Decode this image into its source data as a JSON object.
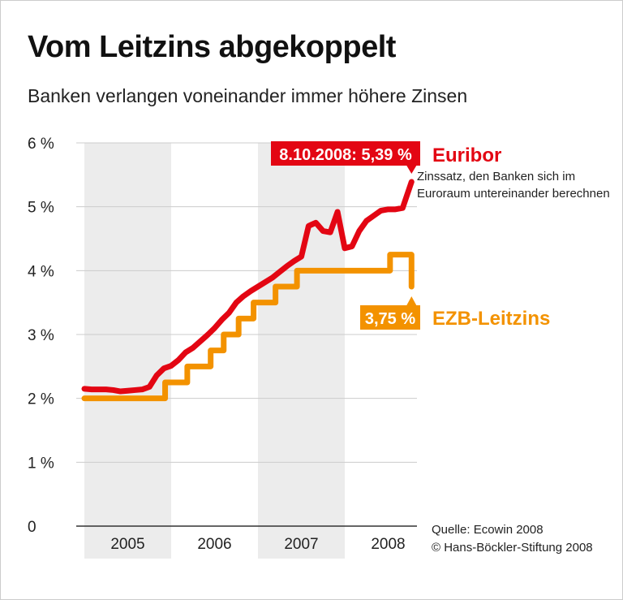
{
  "title": "Vom Leitzins abgekoppelt",
  "subtitle": "Banken verlangen voneinander immer höhere Zinsen",
  "source": "Quelle: Ecowin 2008",
  "copyright": "© Hans-Böckler-Stiftung 2008",
  "chart_data": {
    "type": "line",
    "ylim": [
      0,
      6
    ],
    "yticks": [
      "0",
      "1 %",
      "2 %",
      "3 %",
      "4 %",
      "5 %",
      "6 %"
    ],
    "xticks": [
      "2005",
      "2006",
      "2007",
      "2008"
    ],
    "shaded_years": [
      "2005",
      "2007"
    ],
    "grid": true,
    "series": [
      {
        "name": "Euribor",
        "description": "Zinssatz, den Banken sich im Euroraum untereinander berechnen",
        "color": "#e30613",
        "step": false,
        "points": [
          [
            "2005-01",
            2.15
          ],
          [
            "2005-02",
            2.14
          ],
          [
            "2005-03",
            2.14
          ],
          [
            "2005-04",
            2.14
          ],
          [
            "2005-05",
            2.13
          ],
          [
            "2005-06",
            2.11
          ],
          [
            "2005-07",
            2.12
          ],
          [
            "2005-08",
            2.13
          ],
          [
            "2005-09",
            2.14
          ],
          [
            "2005-10",
            2.18
          ],
          [
            "2005-11",
            2.36
          ],
          [
            "2005-12",
            2.47
          ],
          [
            "2006-01",
            2.51
          ],
          [
            "2006-02",
            2.6
          ],
          [
            "2006-03",
            2.72
          ],
          [
            "2006-04",
            2.79
          ],
          [
            "2006-05",
            2.89
          ],
          [
            "2006-06",
            2.99
          ],
          [
            "2006-07",
            3.1
          ],
          [
            "2006-08",
            3.23
          ],
          [
            "2006-09",
            3.34
          ],
          [
            "2006-10",
            3.5
          ],
          [
            "2006-11",
            3.6
          ],
          [
            "2006-12",
            3.68
          ],
          [
            "2007-01",
            3.75
          ],
          [
            "2007-02",
            3.82
          ],
          [
            "2007-03",
            3.89
          ],
          [
            "2007-04",
            3.98
          ],
          [
            "2007-05",
            4.07
          ],
          [
            "2007-06",
            4.15
          ],
          [
            "2007-07",
            4.22
          ],
          [
            "2007-08",
            4.7
          ],
          [
            "2007-09",
            4.75
          ],
          [
            "2007-10",
            4.62
          ],
          [
            "2007-11",
            4.6
          ],
          [
            "2007-12",
            4.92
          ],
          [
            "2008-01",
            4.35
          ],
          [
            "2008-02",
            4.38
          ],
          [
            "2008-03",
            4.62
          ],
          [
            "2008-04",
            4.78
          ],
          [
            "2008-05",
            4.86
          ],
          [
            "2008-06",
            4.94
          ],
          [
            "2008-07",
            4.96
          ],
          [
            "2008-08",
            4.96
          ],
          [
            "2008-09",
            4.98
          ],
          [
            "2008-10-08",
            5.39
          ]
        ],
        "label": "8.10.2008: 5,39 %"
      },
      {
        "name": "EZB-Leitzins",
        "color": "#f39200",
        "step": true,
        "points": [
          [
            "2005-01",
            2.0
          ],
          [
            "2005-12-06",
            2.25
          ],
          [
            "2006-03-08",
            2.5
          ],
          [
            "2006-06-15",
            2.75
          ],
          [
            "2006-08-09",
            3.0
          ],
          [
            "2006-10-11",
            3.25
          ],
          [
            "2006-12-13",
            3.5
          ],
          [
            "2007-03-14",
            3.75
          ],
          [
            "2007-06-13",
            4.0
          ],
          [
            "2008-07-09",
            4.25
          ],
          [
            "2008-10-08",
            3.75
          ]
        ],
        "label": "3,75 %"
      }
    ]
  }
}
